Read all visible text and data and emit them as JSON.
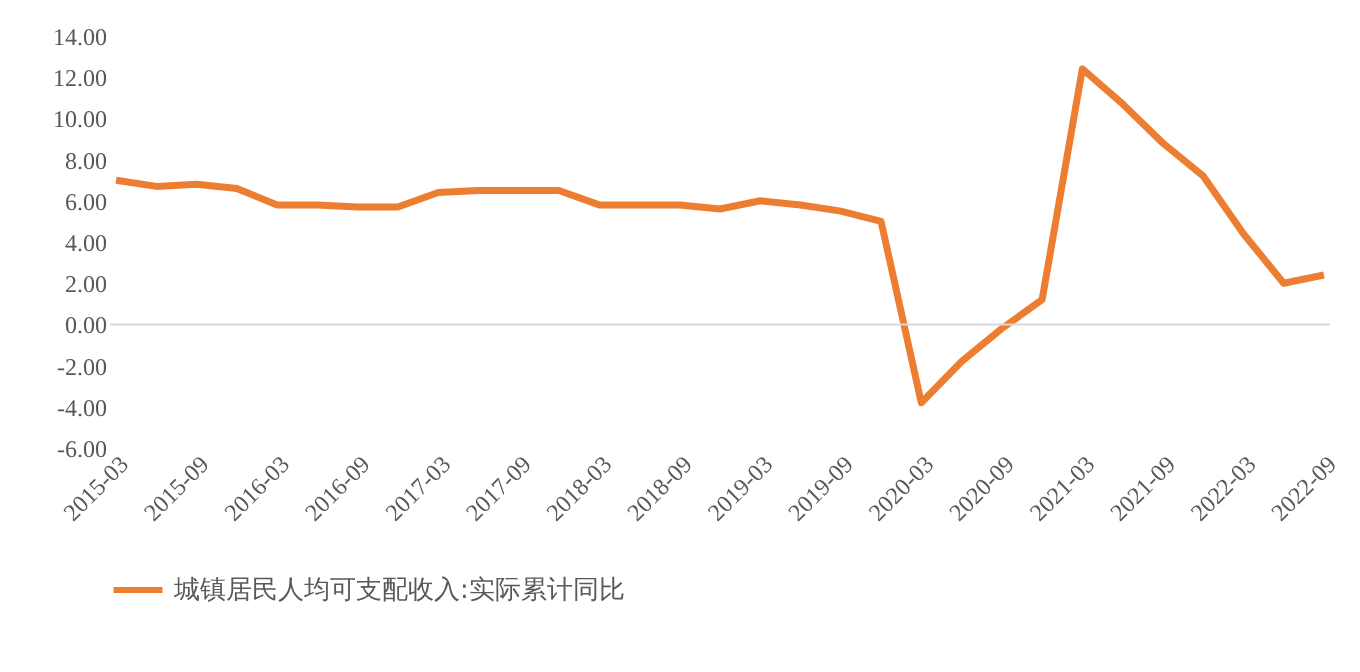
{
  "chart_data": {
    "type": "line",
    "categories": [
      "2015-03",
      null,
      "2015-09",
      null,
      "2016-03",
      null,
      "2016-09",
      null,
      "2017-03",
      null,
      "2017-09",
      null,
      "2018-03",
      null,
      "2018-09",
      null,
      "2019-03",
      null,
      "2019-09",
      null,
      "2020-03",
      null,
      "2020-09",
      null,
      "2021-03",
      null,
      "2021-09",
      null,
      "2022-03",
      null,
      "2022-09"
    ],
    "series": [
      {
        "name": "城镇居民人均可支配收入:实际累计同比",
        "color": "#ed7d31",
        "values": [
          7.0,
          6.7,
          6.8,
          6.6,
          5.8,
          5.8,
          5.7,
          5.7,
          6.4,
          6.5,
          6.5,
          6.5,
          5.8,
          5.8,
          5.8,
          5.6,
          6.0,
          5.8,
          5.5,
          5.0,
          -3.8,
          -1.8,
          -0.2,
          1.2,
          12.4,
          10.7,
          8.8,
          7.2,
          4.4,
          2.0,
          2.4
        ]
      }
    ],
    "ylim": [
      -6,
      14
    ],
    "yticks": [
      {
        "value": -6,
        "label": "-6.00"
      },
      {
        "value": -4,
        "label": "-4.00"
      },
      {
        "value": -2,
        "label": "-2.00"
      },
      {
        "value": 0,
        "label": "0.00"
      },
      {
        "value": 2,
        "label": "2.00"
      },
      {
        "value": 4,
        "label": "4.00"
      },
      {
        "value": 6,
        "label": "6.00"
      },
      {
        "value": 8,
        "label": "8.00"
      },
      {
        "value": 10,
        "label": "10.00"
      },
      {
        "value": 12,
        "label": "12.00"
      },
      {
        "value": 14,
        "label": "14.00"
      }
    ],
    "ref_lines": [
      {
        "axis": "y",
        "value": 0,
        "color": "#d9d9d9"
      }
    ],
    "grid": false,
    "legend": "bottom",
    "marker": "none",
    "line_style": "solid"
  }
}
